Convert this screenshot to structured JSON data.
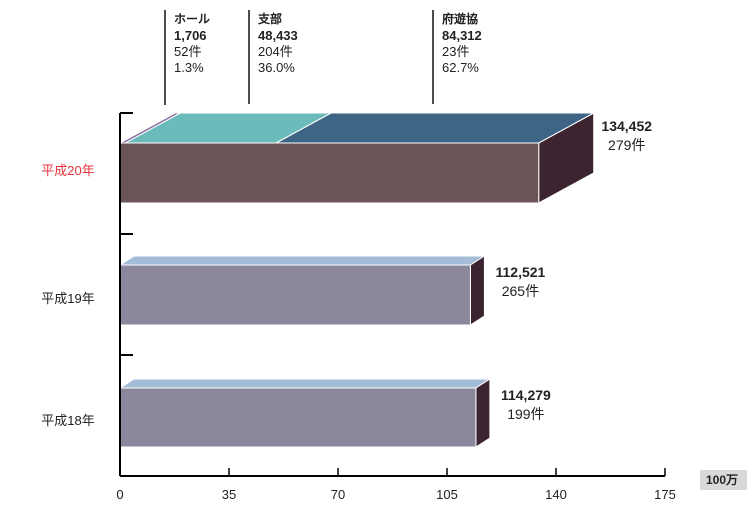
{
  "chart_data": {
    "type": "bar",
    "orientation": "horizontal",
    "style": "3d",
    "unit": "100万",
    "xlim": [
      0,
      175
    ],
    "xticks": [
      0,
      35,
      70,
      105,
      140,
      175
    ],
    "categories": [
      "平成20年",
      "平成19年",
      "平成18年"
    ],
    "highlight_category": "平成20年",
    "bars": [
      {
        "category": "平成20年",
        "value": 134452,
        "value_label": "134,452",
        "count_label": "279件"
      },
      {
        "category": "平成19年",
        "value": 112521,
        "value_label": "112,521",
        "count_label": "265件"
      },
      {
        "category": "平成18年",
        "value": 114279,
        "value_label": "114,279",
        "count_label": "199件"
      }
    ],
    "breakdown": {
      "category": "平成20年",
      "segments": [
        {
          "name": "ホール",
          "value": 1706,
          "value_label": "1,706",
          "count_label": "52件",
          "share_label": "1.3%"
        },
        {
          "name": "支部",
          "value": 48433,
          "value_label": "48,433",
          "count_label": "204件",
          "share_label": "36.0%"
        },
        {
          "name": "府遊協",
          "value": 84312,
          "value_label": "84,312",
          "count_label": "23件",
          "share_label": "62.7%"
        }
      ]
    },
    "colors": {
      "bar_2008_front": "#6a5457",
      "bar_2008_side": "#3c2530",
      "bar_other_front": "#8b879d",
      "bar_other_top": "#a5bcd8",
      "bar_other_side": "#3c2530",
      "segment_hall": "#8a6ca0",
      "segment_branch": "#6bbbbb",
      "segment_prefecture": "#3e6585",
      "highlight_label": "#e8303a",
      "axis": "#000000"
    }
  }
}
